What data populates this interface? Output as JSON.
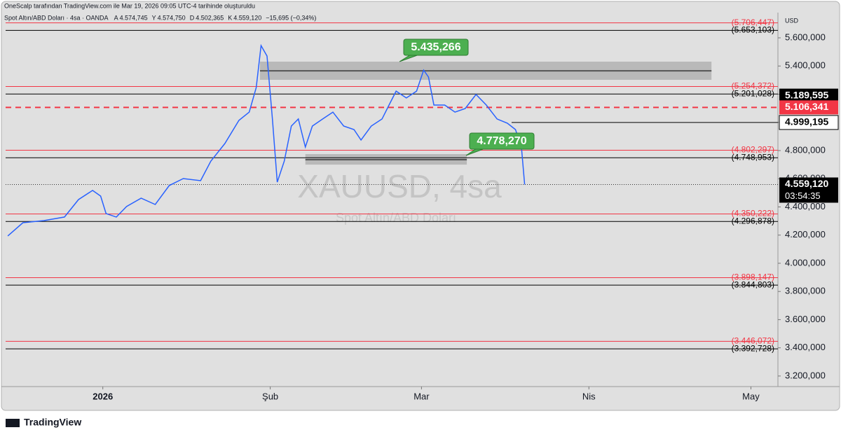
{
  "header": {
    "credit": "OneScalp tarafından TradingView.com ile Mar 19, 2026 09:05 UTC-4 tarihinde oluşturuldu",
    "symbol": "Spot Altın/ABD Doları · 4sa · OANDA",
    "ohlc": [
      {
        "key": "A",
        "value": "4.574,745"
      },
      {
        "key": "Y",
        "value": "4.574,750"
      },
      {
        "key": "D",
        "value": "4.502,365"
      },
      {
        "key": "K",
        "value": "4.559,120"
      }
    ],
    "change": "−15,695 (−0,34%)"
  },
  "footer": "TradingView",
  "chart_data": {
    "type": "line",
    "color": "#2962ff",
    "currency": "USD",
    "watermark": "XAUUSD, 4sa",
    "watermark_sub": "Spot Altın/ABD Doları",
    "x": [
      -16.6,
      -13.8,
      -9.9,
      -6.1,
      -3.5,
      -0.9,
      0.6,
      1.6,
      3.5,
      5.4,
      8.1,
      10.7,
      13.3,
      15.9,
      19.1,
      21.0,
      23.6,
      26.2,
      28.1,
      29.4,
      30.3,
      31.4,
      32.4,
      33.3,
      34.6,
      35.9,
      37.2,
      38.5,
      39.8,
      41.7,
      43.6,
      45.6,
      47.5,
      48.8,
      50.7,
      52.7,
      54.0,
      55.3,
      57.2,
      59.1,
      60.4,
      61.3,
      62.3,
      64.3,
      66.2,
      68.1,
      70.1,
      72.0,
      74.0,
      75.9,
      77.4,
      78.5,
      79.1
    ],
    "values": [
      4194,
      4288,
      4303,
      4328,
      4452,
      4517,
      4477,
      4353,
      4328,
      4403,
      4462,
      4417,
      4552,
      4601,
      4586,
      4725,
      4850,
      5014,
      5073,
      5247,
      5545,
      5471,
      5024,
      4576,
      4725,
      4974,
      5024,
      4825,
      4974,
      5024,
      5073,
      4974,
      4949,
      4875,
      4974,
      5024,
      5123,
      5222,
      5173,
      5222,
      5371,
      5322,
      5123,
      5123,
      5073,
      5098,
      5198,
      5123,
      5024,
      4994,
      4949,
      4825,
      4559.12
    ],
    "xlim": [
      -17,
      126
    ],
    "xticks": [
      {
        "value": 1,
        "label": "2026"
      },
      {
        "value": 32,
        "label": "Şub"
      },
      {
        "value": 60,
        "label": "Mar"
      },
      {
        "value": 91,
        "label": "Nis"
      },
      {
        "value": 121,
        "label": "May"
      }
    ],
    "ylim": [
      3125,
      5779
    ],
    "yticks": [
      {
        "value": 5600,
        "label": "5.600,000"
      },
      {
        "value": 5400,
        "label": "5.400,000"
      },
      {
        "value": 5200,
        "label": "5.200,000"
      },
      {
        "value": 5000,
        "label": "5.000,000"
      },
      {
        "value": 4800,
        "label": "4.800,000"
      },
      {
        "value": 4600,
        "label": "4.600,000"
      },
      {
        "value": 4400,
        "label": "4.400,000"
      },
      {
        "value": 4200,
        "label": "4.200,000"
      },
      {
        "value": 4000,
        "label": "4.000,000"
      },
      {
        "value": 3800,
        "label": "3.800,000"
      },
      {
        "value": 3600,
        "label": "3.600,000"
      },
      {
        "value": 3400,
        "label": "3.400,000"
      },
      {
        "value": 3200,
        "label": "3.200,000"
      }
    ],
    "levels": [
      {
        "value": 5706.447,
        "label": "(5.706,447)",
        "color": "#f23645"
      },
      {
        "value": 5653.103,
        "label": "(5.653,103)",
        "color": "#000000"
      },
      {
        "value": 5254.372,
        "label": "(5.254,372)",
        "color": "#f23645"
      },
      {
        "value": 5201.028,
        "label": "(5.201,028)",
        "color": "#000000"
      },
      {
        "value": 4802.297,
        "label": "(4.802,297)",
        "color": "#f23645"
      },
      {
        "value": 4748.953,
        "label": "(4.748,953)",
        "color": "#000000"
      },
      {
        "value": 4350.222,
        "label": "(4.350,222)",
        "color": "#f23645"
      },
      {
        "value": 4296.878,
        "label": "(4.296,878)",
        "color": "#000000"
      },
      {
        "value": 3898.147,
        "label": "(3.898,147)",
        "color": "#f23645"
      },
      {
        "value": 3844.803,
        "label": "(3.844,803)",
        "color": "#000000"
      },
      {
        "value": 3446.072,
        "label": "(3.446,072)",
        "color": "#f23645"
      },
      {
        "value": 3392.728,
        "label": "(3.392,728)",
        "color": "#000000"
      }
    ],
    "price_tags": [
      {
        "value": 5189.595,
        "label": "5.189,595",
        "color": "#000000"
      },
      {
        "value": 5106.341,
        "label": "5.106,341",
        "color": "#f23645"
      },
      {
        "value": 4999.195,
        "label": "4.999,195",
        "color": "#ffffff"
      },
      {
        "value": 4559.12,
        "label": "4.559,120",
        "color": "#000000",
        "countdown": "03:54:35"
      }
    ],
    "zones": [
      {
        "xlim": [
          30.1,
          113.7
        ],
        "ylim": [
          5302,
          5431
        ],
        "mid": 5366
      },
      {
        "xlim": [
          38.5,
          68.4
        ],
        "ylim": [
          4700,
          4775
        ],
        "mid": 4735
      }
    ],
    "annotations": [
      {
        "value": 5435.266,
        "label": "5.435,266"
      },
      {
        "value": 4778.27,
        "label": "4.778,270"
      }
    ]
  }
}
